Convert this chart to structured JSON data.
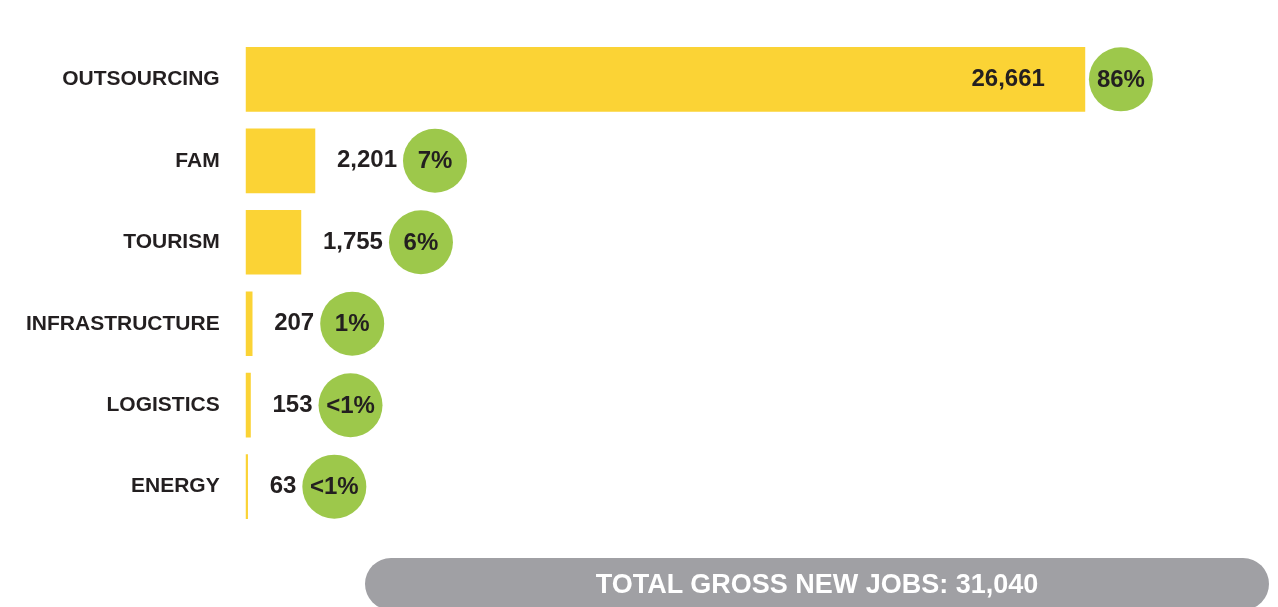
{
  "chart_data": {
    "type": "bar",
    "orientation": "horizontal",
    "categories": [
      "OUTSOURCING",
      "FAM",
      "TOURISM",
      "INFRASTRUCTURE",
      "LOGISTICS",
      "ENERGY"
    ],
    "values": [
      26661,
      2201,
      1755,
      207,
      153,
      63
    ],
    "value_labels": [
      "26,661",
      "2,201",
      "1,755",
      "207",
      "153",
      "63"
    ],
    "color": "#fbd335",
    "tick_labels": "y",
    "legend": false,
    "annotations": [
      "86%",
      "7%",
      "6%",
      "1%",
      "<1%",
      "<1%",
      "TOTAL GROSS NEW JOBS: 31,040"
    ]
  }
}
